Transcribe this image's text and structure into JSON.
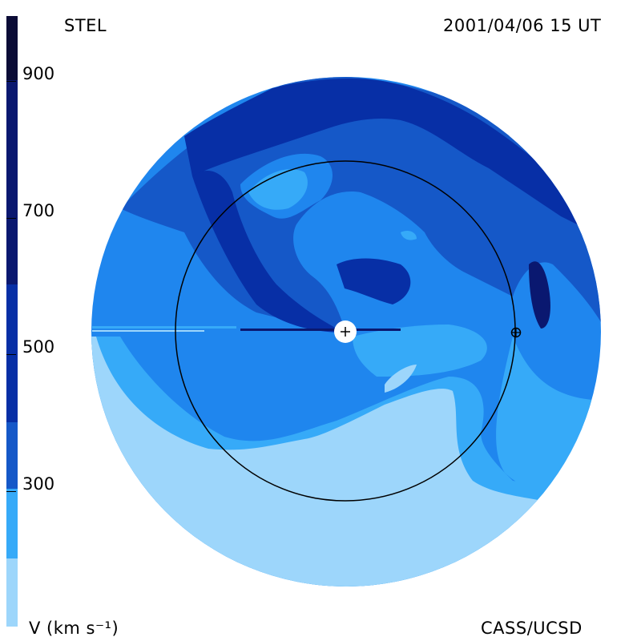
{
  "header": {
    "title": "STEL",
    "timestamp": "2001/04/06 15 UT"
  },
  "footer": {
    "units_label": "V (km s⁻¹)",
    "credit": "CASS/UCSD"
  },
  "colorbar": {
    "ticks": [
      "900",
      "700",
      "500",
      "300"
    ],
    "colors": [
      "#0b0c36",
      "#0a1870",
      "#072fa6",
      "#1558c8",
      "#1f86ee",
      "#36aaf8",
      "#9dd6fb"
    ]
  },
  "palette": {
    "lightest": "#9dd6fb",
    "light": "#36aaf8",
    "mid": "#1f86ee",
    "dark": "#1558c8",
    "darker": "#072fa6",
    "darkest": "#0a1870"
  }
}
